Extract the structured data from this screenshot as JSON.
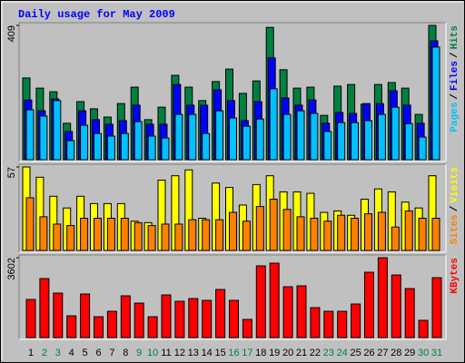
{
  "chart_data": {
    "title": "Daily usage for May 2009",
    "separator": "/",
    "categories": [
      "1",
      "2",
      "3",
      "4",
      "5",
      "6",
      "7",
      "8",
      "9",
      "10",
      "11",
      "12",
      "13",
      "14",
      "15",
      "16",
      "17",
      "18",
      "19",
      "20",
      "21",
      "22",
      "23",
      "24",
      "25",
      "26",
      "27",
      "28",
      "29",
      "30",
      "31"
    ],
    "category_colors": [
      "#000000",
      "#008040",
      "#008040",
      "#000000",
      "#000000",
      "#000000",
      "#000000",
      "#000000",
      "#008040",
      "#008040",
      "#000000",
      "#000000",
      "#000000",
      "#000000",
      "#000000",
      "#008040",
      "#008040",
      "#000000",
      "#000000",
      "#000000",
      "#000000",
      "#000000",
      "#008040",
      "#008040",
      "#000000",
      "#000000",
      "#000000",
      "#000000",
      "#000000",
      "#008040",
      "#008040"
    ],
    "panels": [
      {
        "type": "bar",
        "ylim": [
          0,
          409
        ],
        "yticks": [
          409
        ],
        "series": [
          {
            "name": "Hits",
            "color": "#008040",
            "values": [
              249,
              218,
              207,
              111,
              177,
              155,
              130,
              171,
              221,
              122,
              160,
              257,
              221,
              180,
              238,
              276,
              202,
              240,
              403,
              274,
              218,
              221,
              135,
              224,
              229,
              169,
              229,
              235,
              218,
              138,
              409
            ]
          },
          {
            "name": "Files",
            "color": "#0000ff",
            "values": [
              182,
              149,
              185,
              86,
              149,
              122,
              108,
              119,
              166,
              108,
              108,
              229,
              166,
              166,
              213,
              180,
              119,
              177,
              310,
              188,
              166,
              182,
              111,
              144,
              141,
              171,
              171,
              210,
              166,
              111,
              362
            ]
          },
          {
            "name": "Pages",
            "color": "#00c0ff",
            "values": [
              152,
              133,
              180,
              58,
              105,
              80,
              72,
              80,
              116,
              72,
              66,
              138,
              138,
              80,
              149,
              127,
              102,
              124,
              216,
              138,
              149,
              141,
              86,
              113,
              113,
              119,
              138,
              160,
              110,
              69,
              343
            ]
          }
        ]
      },
      {
        "type": "bar",
        "ylim": [
          0,
          57
        ],
        "yticks": [
          57
        ],
        "series": [
          {
            "name": "Visits",
            "color": "#ffff00",
            "values": [
              57,
              50,
              37,
              29,
              37,
              32,
              32,
              32,
              20,
              19,
              48,
              51,
              55,
              22,
              46,
              43,
              31,
              45,
              51,
              40,
              40,
              39,
              26,
              27,
              24,
              35,
              42,
              40,
              33,
              29,
              51
            ]
          },
          {
            "name": "Sites",
            "color": "#ff8000",
            "values": [
              36,
              23,
              18,
              17,
              22,
              22,
              22,
              22,
              19,
              17,
              18,
              18,
              21,
              21,
              21,
              26,
              20,
              30,
              35,
              28,
              23,
              22,
              20,
              24,
              22,
              25,
              26,
              16,
              27,
              22,
              22
            ]
          }
        ]
      },
      {
        "type": "bar",
        "ylim": [
          0,
          3602
        ],
        "yticks": [
          3602
        ],
        "series": [
          {
            "name": "KBytes",
            "color": "#ff0000",
            "values": [
              1719,
              2661,
              2006,
              982,
              1965,
              941,
              1187,
              1883,
              1555,
              941,
              1924,
              1637,
              1760,
              1678,
              2169,
              1678,
              819,
              3234,
              3356,
              2292,
              2333,
              1351,
              1187,
              1187,
              1514,
              2947,
              3602,
              2824,
              2210,
              778,
              2701
            ]
          }
        ]
      }
    ]
  }
}
